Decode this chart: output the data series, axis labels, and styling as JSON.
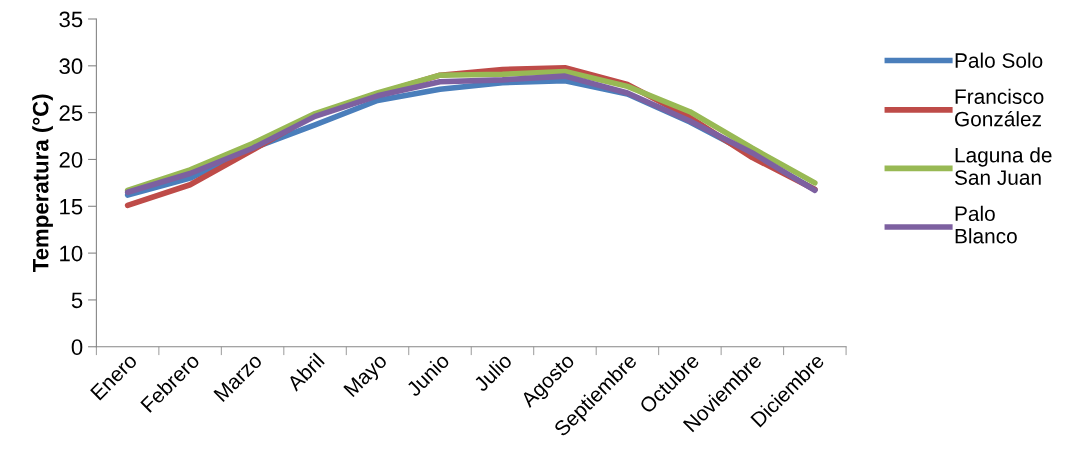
{
  "chart_data": {
    "type": "line",
    "ylabel": "Temperatura (°C)",
    "categories": [
      "Enero",
      "Febrero",
      "Marzo",
      "Abril",
      "Mayo",
      "Junio",
      "Julio",
      "Agosto",
      "Septiembre",
      "Octubre",
      "Noviembre",
      "Diciembre"
    ],
    "series": [
      {
        "name": "Palo Solo",
        "color": "#4a7ebb",
        "values": [
          16.2,
          18.0,
          21.2,
          23.7,
          26.3,
          27.5,
          28.2,
          28.4,
          27.0,
          24.0,
          20.5,
          16.8
        ]
      },
      {
        "name": "Francisco González",
        "color": "#be4b48",
        "values": [
          15.1,
          17.3,
          21.0,
          24.8,
          27.0,
          29.0,
          29.6,
          29.8,
          28.0,
          24.5,
          20.2,
          16.8
        ]
      },
      {
        "name": "Laguna de San Juan",
        "color": "#98b954",
        "values": [
          16.7,
          18.9,
          21.7,
          24.9,
          27.1,
          29.0,
          29.1,
          29.4,
          27.8,
          25.1,
          21.2,
          17.5
        ]
      },
      {
        "name": "Palo Blanco",
        "color": "#7d60a0",
        "values": [
          16.5,
          18.5,
          21.2,
          24.6,
          26.8,
          28.3,
          28.5,
          28.9,
          27.1,
          24.1,
          20.7,
          16.7
        ]
      }
    ],
    "ylim": [
      0,
      35
    ],
    "yticks": [
      0,
      5,
      10,
      15,
      20,
      25,
      30,
      35
    ],
    "grid": false,
    "legend": "right",
    "marker": "none",
    "line_style": "solid"
  }
}
